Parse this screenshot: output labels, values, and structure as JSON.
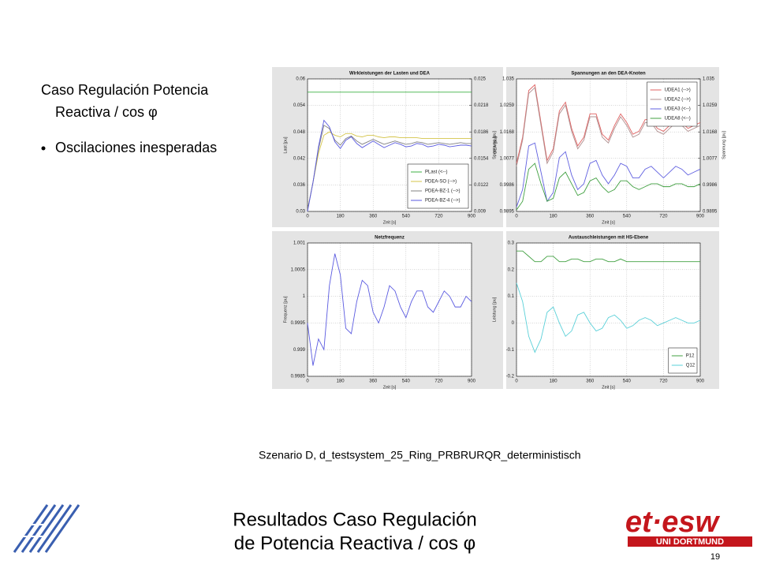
{
  "heading": [
    "Caso Regulación Potencia",
    "Reactiva / cos φ"
  ],
  "bullet": "Oscilaciones inesperadas",
  "caption": "Szenario D, d_testsystem_25_Ring_PRBRURQR_deterministisch",
  "footer": {
    "title": [
      "Resultados Caso Regulación",
      "de Potencia Reactiva / cos φ"
    ],
    "page": "19"
  },
  "logo": {
    "name": "et·esw",
    "subtitle": "UNI DORTMUND"
  },
  "chart_data": [
    {
      "type": "line",
      "title": "Wirkleistungen der Lasten und DEA",
      "xlabel": "Zeit [s]",
      "ylabel": "Last [pu]",
      "y2label": "DEA [pu]",
      "x": [
        0,
        30,
        60,
        90,
        120,
        150,
        180,
        210,
        240,
        270,
        300,
        330,
        360,
        390,
        420,
        450,
        480,
        510,
        540,
        570,
        600,
        630,
        660,
        690,
        720,
        750,
        780,
        810,
        840,
        870,
        900
      ],
      "xlim": [
        0,
        900
      ],
      "xticks": [
        0,
        180,
        360,
        540,
        720,
        900
      ],
      "ylim": [
        0.03,
        0.06
      ],
      "yticks": [
        0.03,
        0.036,
        0.042,
        0.048,
        0.054,
        0.06
      ],
      "y2lim": [
        0.009,
        0.025
      ],
      "y2ticks": [
        0.009,
        0.0122,
        0.0154,
        0.0186,
        0.0218,
        0.025
      ],
      "grid": true,
      "legend": "lower right",
      "series": [
        {
          "name": "PLast (<--)",
          "color": "#3cb043",
          "values": [
            0.057,
            0.057,
            0.057,
            0.057,
            0.057,
            0.057,
            0.057,
            0.057,
            0.057,
            0.057,
            0.057,
            0.057,
            0.057,
            0.057,
            0.057,
            0.057,
            0.057,
            0.057,
            0.057,
            0.057,
            0.057,
            0.057,
            0.057,
            0.057,
            0.057,
            0.057,
            0.057,
            0.057,
            0.057,
            0.057,
            0.057
          ]
        },
        {
          "name": "PDEA-SO (-->)",
          "color": "#d4c44a",
          "axis": "y2",
          "values": [
            0.0092,
            0.0125,
            0.016,
            0.0182,
            0.0186,
            0.0182,
            0.018,
            0.0184,
            0.0184,
            0.0181,
            0.018,
            0.0182,
            0.0182,
            0.018,
            0.0179,
            0.018,
            0.018,
            0.0179,
            0.0179,
            0.0179,
            0.0179,
            0.0178,
            0.0178,
            0.0178,
            0.0178,
            0.0178,
            0.0178,
            0.0178,
            0.0178,
            0.0178,
            0.0178
          ]
        },
        {
          "name": "PDEA-BZ-1 (-->)",
          "color": "#808080",
          "axis": "y2",
          "values": [
            0.0092,
            0.0125,
            0.0165,
            0.0194,
            0.019,
            0.0176,
            0.017,
            0.0178,
            0.0181,
            0.0175,
            0.0171,
            0.0174,
            0.0177,
            0.0174,
            0.0171,
            0.0173,
            0.0175,
            0.0173,
            0.0171,
            0.0172,
            0.0174,
            0.0173,
            0.0171,
            0.0172,
            0.0173,
            0.0172,
            0.0171,
            0.0172,
            0.0173,
            0.0172,
            0.0172
          ]
        },
        {
          "name": "PDEA-BZ-4 (-->)",
          "color": "#5a5ae0",
          "axis": "y2",
          "values": [
            0.009,
            0.0125,
            0.0168,
            0.02,
            0.0192,
            0.0174,
            0.0166,
            0.0176,
            0.018,
            0.0172,
            0.0167,
            0.0171,
            0.0175,
            0.0171,
            0.0167,
            0.017,
            0.0173,
            0.0171,
            0.0168,
            0.0169,
            0.0172,
            0.0171,
            0.0168,
            0.0169,
            0.0171,
            0.017,
            0.0168,
            0.0169,
            0.017,
            0.017,
            0.0169
          ]
        }
      ]
    },
    {
      "type": "line",
      "title": "Spannungen an den DEA-Knoten",
      "xlabel": "Zeit [s]",
      "ylabel": "Spannung [pu]",
      "y2label": "Spannung [pu]",
      "x": [
        0,
        30,
        60,
        90,
        120,
        150,
        180,
        210,
        240,
        270,
        300,
        330,
        360,
        390,
        420,
        450,
        480,
        510,
        540,
        570,
        600,
        630,
        660,
        690,
        720,
        750,
        780,
        810,
        840,
        870,
        900
      ],
      "xlim": [
        0,
        900
      ],
      "xticks": [
        0,
        180,
        360,
        540,
        720,
        900
      ],
      "ylim": [
        0.9895,
        1.035
      ],
      "yticks": [
        0.9895,
        0.9986,
        1.0077,
        1.0168,
        1.0259,
        1.035
      ],
      "y2lim": [
        0.9895,
        1.035
      ],
      "y2ticks": [
        0.9895,
        0.9986,
        1.0077,
        1.0168,
        1.0259,
        1.035
      ],
      "grid": true,
      "legend": "upper right",
      "series": [
        {
          "name": "UDEA1 (-->)",
          "color": "#e06060",
          "values": [
            1.006,
            1.015,
            1.031,
            1.033,
            1.02,
            1.007,
            1.011,
            1.024,
            1.027,
            1.018,
            1.012,
            1.015,
            1.023,
            1.023,
            1.016,
            1.014,
            1.019,
            1.023,
            1.02,
            1.016,
            1.017,
            1.021,
            1.021,
            1.018,
            1.017,
            1.019,
            1.021,
            1.02,
            1.018,
            1.019,
            1.02
          ]
        },
        {
          "name": "UDEA2 (-->)",
          "color": "#b09090",
          "values": [
            1.005,
            1.014,
            1.03,
            1.032,
            1.019,
            1.006,
            1.01,
            1.023,
            1.026,
            1.017,
            1.011,
            1.014,
            1.022,
            1.022,
            1.015,
            1.013,
            1.018,
            1.022,
            1.019,
            1.015,
            1.016,
            1.02,
            1.02,
            1.017,
            1.016,
            1.018,
            1.02,
            1.019,
            1.017,
            1.018,
            1.019
          ]
        },
        {
          "name": "UDEA3 (<--)",
          "color": "#6060e0",
          "values": [
            0.991,
            0.997,
            1.012,
            1.013,
            1.003,
            0.993,
            0.996,
            1.008,
            1.01,
            1.002,
            0.997,
            0.999,
            1.006,
            1.007,
            1.002,
            0.999,
            1.002,
            1.006,
            1.005,
            1.001,
            1.001,
            1.004,
            1.005,
            1.003,
            1.001,
            1.003,
            1.005,
            1.004,
            1.002,
            1.003,
            1.004
          ]
        },
        {
          "name": "UDEA8 (<--)",
          "color": "#40a040",
          "values": [
            0.99,
            0.993,
            1.004,
            1.006,
            0.999,
            0.993,
            0.994,
            1.001,
            1.003,
            0.999,
            0.995,
            0.996,
            1.0,
            1.001,
            0.998,
            0.996,
            0.997,
            1.0,
            1.0,
            0.998,
            0.997,
            0.998,
            0.999,
            0.999,
            0.998,
            0.998,
            0.999,
            0.999,
            0.998,
            0.998,
            0.999
          ]
        }
      ]
    },
    {
      "type": "line",
      "title": "Netzfrequenz",
      "xlabel": "Zeit [s]",
      "ylabel": "Frequenz [pu]",
      "x": [
        0,
        30,
        60,
        90,
        120,
        150,
        180,
        210,
        240,
        270,
        300,
        330,
        360,
        390,
        420,
        450,
        480,
        510,
        540,
        570,
        600,
        630,
        660,
        690,
        720,
        750,
        780,
        810,
        840,
        870,
        900
      ],
      "xlim": [
        0,
        900
      ],
      "xticks": [
        0,
        180,
        360,
        540,
        720,
        900
      ],
      "ylim": [
        0.9985,
        1.001
      ],
      "yticks": [
        0.9985,
        0.999,
        0.9995,
        1,
        1.0005,
        1.001
      ],
      "grid": true,
      "series": [
        {
          "color": "#5a5ae0",
          "values": [
            0.9995,
            0.9987,
            0.9992,
            0.999,
            1.0002,
            1.0008,
            1.0004,
            0.9994,
            0.9993,
            0.9999,
            1.0003,
            1.0002,
            0.9997,
            0.9995,
            0.9998,
            1.0002,
            1.0001,
            0.9998,
            0.9996,
            0.9999,
            1.0001,
            1.0001,
            0.9998,
            0.9997,
            0.9999,
            1.0001,
            1.0,
            0.9998,
            0.9998,
            1.0,
            0.9999
          ]
        }
      ]
    },
    {
      "type": "line",
      "title": "Austauschleistungen mit HS-Ebene",
      "xlabel": "Zeit [s]",
      "ylabel": "Leistung [pu]",
      "x": [
        0,
        30,
        60,
        90,
        120,
        150,
        180,
        210,
        240,
        270,
        300,
        330,
        360,
        390,
        420,
        450,
        480,
        510,
        540,
        570,
        600,
        630,
        660,
        690,
        720,
        750,
        780,
        810,
        840,
        870,
        900
      ],
      "xlim": [
        0,
        900
      ],
      "xticks": [
        0,
        180,
        360,
        540,
        720,
        900
      ],
      "ylim": [
        -0.2,
        0.3
      ],
      "yticks": [
        -0.2,
        -0.1,
        0,
        0.1,
        0.2,
        0.3
      ],
      "grid": true,
      "legend": "lower right",
      "series": [
        {
          "name": "P12",
          "color": "#40a040",
          "values": [
            0.27,
            0.27,
            0.25,
            0.23,
            0.23,
            0.25,
            0.25,
            0.23,
            0.23,
            0.24,
            0.24,
            0.23,
            0.23,
            0.24,
            0.24,
            0.23,
            0.23,
            0.24,
            0.23,
            0.23,
            0.23,
            0.23,
            0.23,
            0.23,
            0.23,
            0.23,
            0.23,
            0.23,
            0.23,
            0.23,
            0.23
          ]
        },
        {
          "name": "Q12",
          "color": "#5ad0d8",
          "values": [
            0.15,
            0.08,
            -0.05,
            -0.11,
            -0.06,
            0.04,
            0.06,
            0.0,
            -0.05,
            -0.03,
            0.03,
            0.04,
            0.0,
            -0.03,
            -0.02,
            0.02,
            0.03,
            0.01,
            -0.02,
            -0.01,
            0.01,
            0.02,
            0.01,
            -0.01,
            0.0,
            0.01,
            0.02,
            0.01,
            0.0,
            0.0,
            0.01
          ]
        }
      ]
    }
  ]
}
